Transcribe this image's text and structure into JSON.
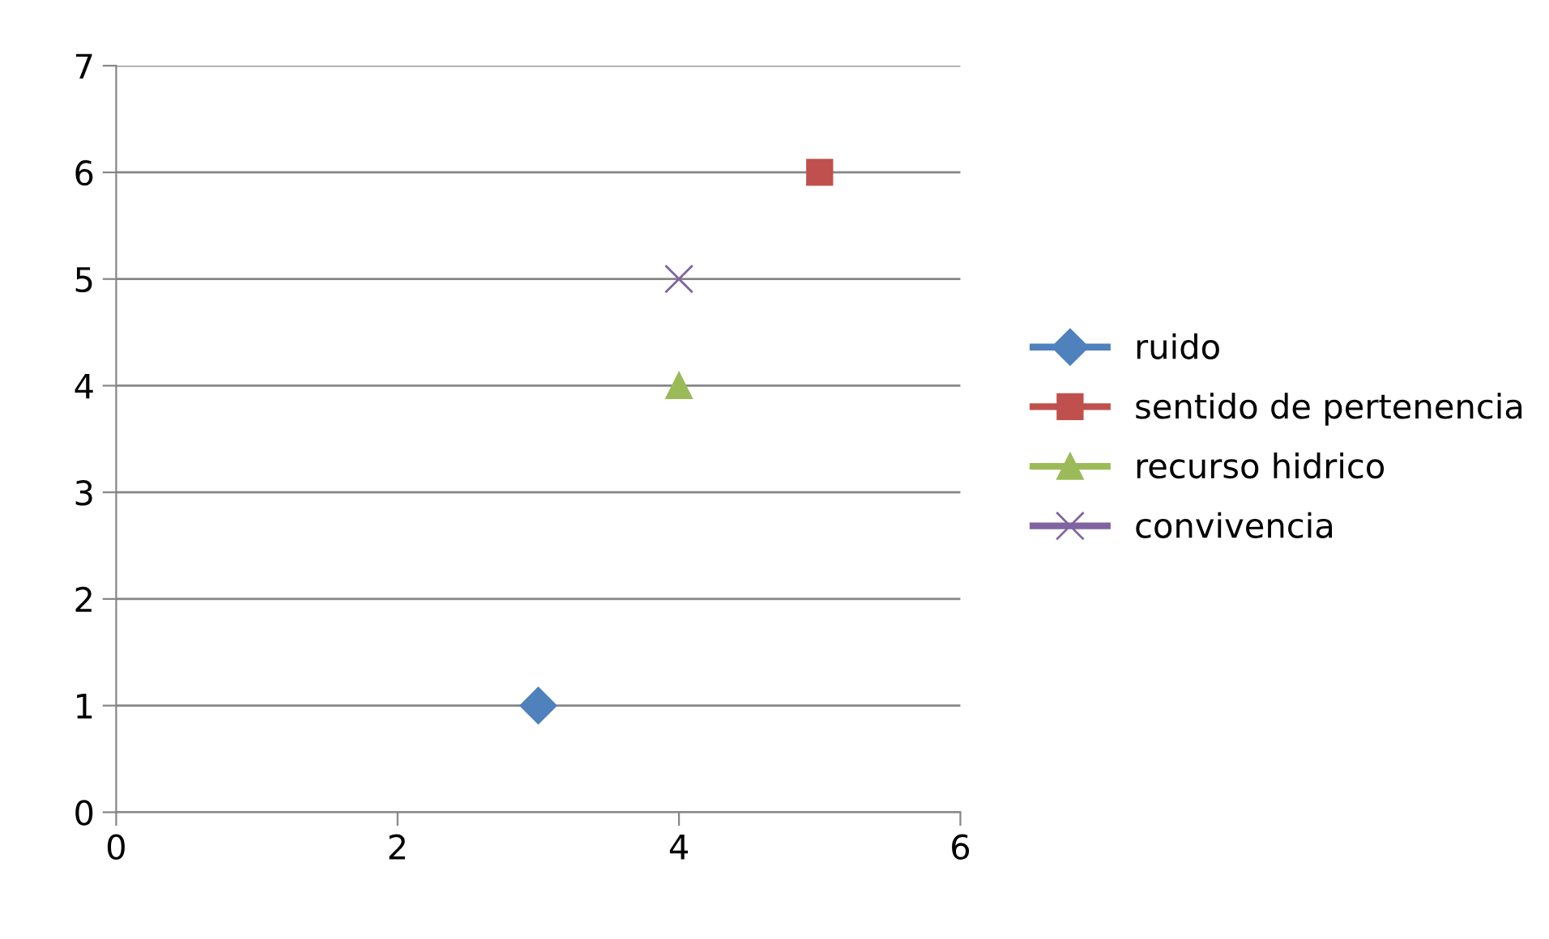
{
  "chart_data": {
    "type": "line",
    "series": [
      {
        "name": "ruido",
        "color": "#4f81bd",
        "x": [
          3
        ],
        "values": [
          1
        ],
        "marker": "diamond"
      },
      {
        "name": "sentido de pertenencia",
        "color": "#c0504d",
        "x": [
          5
        ],
        "values": [
          6
        ],
        "marker": "square"
      },
      {
        "name": "recurso hidrico",
        "color": "#9bbb59",
        "x": [
          4
        ],
        "values": [
          4
        ],
        "marker": "triangle"
      },
      {
        "name": "convivencia",
        "color": "#8064a2",
        "x": [
          4
        ],
        "values": [
          5
        ],
        "marker": "cross"
      }
    ],
    "xlim": [
      0,
      6
    ],
    "xticks": [
      0,
      2,
      4,
      6
    ],
    "ylim": [
      0,
      7
    ],
    "yticks": [
      0,
      1,
      2,
      3,
      4,
      5,
      6,
      7
    ],
    "grid": "y",
    "legend": "right",
    "line_style": "solid"
  }
}
